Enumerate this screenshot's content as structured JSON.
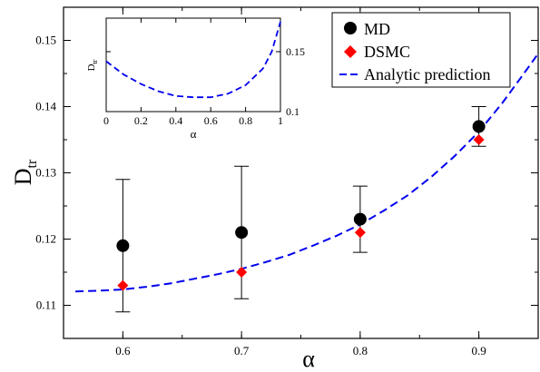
{
  "chart_data": [
    {
      "type": "scatter",
      "panel": "main",
      "xlabel": "α",
      "ylabel": "D",
      "ylabel_sub": "tr",
      "xlim": [
        0.55,
        0.95
      ],
      "ylim": [
        0.105,
        0.155
      ],
      "xticks": [
        0.6,
        0.7,
        0.8,
        0.9
      ],
      "xtick_labels": [
        "0.6",
        "0.7",
        "0.8",
        "0.9"
      ],
      "yticks": [
        0.11,
        0.12,
        0.13,
        0.14,
        0.15
      ],
      "ytick_labels": [
        "0.11",
        "0.12",
        "0.13",
        "0.14",
        "0.15"
      ],
      "grid": false,
      "legend_position": "top-right",
      "series": [
        {
          "name": "MD",
          "marker": "circle",
          "color": "#000000",
          "x": [
            0.6,
            0.7,
            0.8,
            0.9
          ],
          "y": [
            0.119,
            0.121,
            0.123,
            0.137
          ],
          "err_low": [
            0.109,
            0.111,
            0.118,
            0.134
          ],
          "err_high": [
            0.129,
            0.131,
            0.128,
            0.14
          ]
        },
        {
          "name": "DSMC",
          "marker": "diamond",
          "color": "#ff0000",
          "x": [
            0.6,
            0.7,
            0.8,
            0.9
          ],
          "y": [
            0.113,
            0.115,
            0.121,
            0.135
          ]
        },
        {
          "name": "Analytic prediction",
          "line_style": "dashed",
          "color": "#0000ee",
          "x": [
            0.56,
            0.58,
            0.6,
            0.62,
            0.64,
            0.66,
            0.68,
            0.7,
            0.72,
            0.74,
            0.76,
            0.78,
            0.8,
            0.82,
            0.84,
            0.86,
            0.88,
            0.9,
            0.92,
            0.94,
            0.95
          ],
          "y": [
            0.1121,
            0.1122,
            0.1124,
            0.1128,
            0.1133,
            0.114,
            0.1147,
            0.1155,
            0.1165,
            0.1176,
            0.119,
            0.1205,
            0.1222,
            0.1243,
            0.1266,
            0.1294,
            0.1326,
            0.1362,
            0.1406,
            0.1455,
            0.148
          ]
        }
      ]
    },
    {
      "type": "line",
      "panel": "inset",
      "xlabel": "α",
      "ylabel": "D",
      "ylabel_sub": "tr",
      "xlim": [
        0,
        1
      ],
      "ylim": [
        0.1,
        0.178
      ],
      "xticks": [
        0,
        0.2,
        0.4,
        0.6,
        0.8,
        1
      ],
      "xtick_labels": [
        "0",
        "0.2",
        "0.4",
        "0.6",
        "0.8",
        "1"
      ],
      "yticks": [
        0.1,
        0.15
      ],
      "ytick_labels": [
        "0.1",
        "0.15"
      ],
      "series": [
        {
          "line_style": "dashed",
          "color": "#0000ee",
          "x": [
            0,
            0.1,
            0.2,
            0.3,
            0.4,
            0.5,
            0.6,
            0.7,
            0.8,
            0.9,
            0.95,
            1.0
          ],
          "y": [
            0.142,
            0.131,
            0.123,
            0.117,
            0.113,
            0.112,
            0.112,
            0.115,
            0.122,
            0.136,
            0.15,
            0.175
          ]
        }
      ]
    }
  ]
}
